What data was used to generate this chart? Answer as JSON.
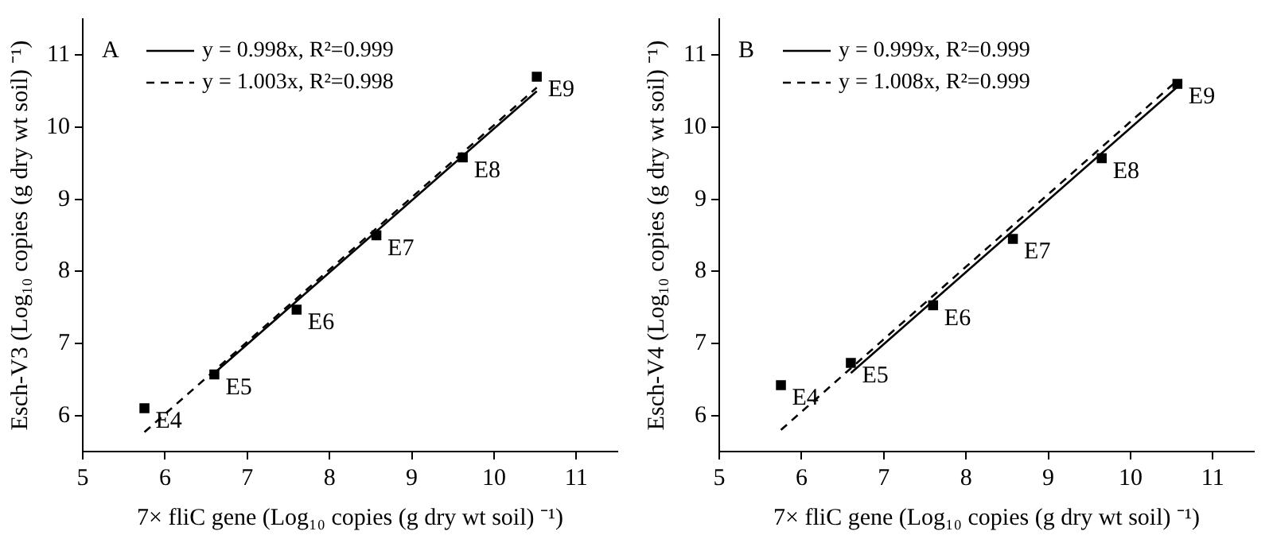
{
  "chart_data": [
    {
      "type": "scatter",
      "xlabel": "7× fliC gene (Log₁₀ copies (g dry wt soil) ⁻¹)",
      "ylabel": "Esch-V3 (Log₁₀ copies (g dry wt soil) ⁻¹)",
      "xlim": [
        5,
        11.5
      ],
      "xticks": [
        5,
        6,
        7,
        8,
        9,
        10,
        11
      ],
      "ylim": [
        5.5,
        11.5
      ],
      "yticks": [
        6,
        7,
        8,
        9,
        10,
        11
      ],
      "grid": false,
      "legend": "top left",
      "series": [
        {
          "type": "scatter",
          "marker": "square",
          "color": "#000000",
          "x": [
            5.75,
            6.6,
            7.6,
            8.57,
            9.62,
            10.52
          ],
          "values": [
            6.1,
            6.57,
            7.47,
            8.5,
            9.58,
            10.7
          ]
        },
        {
          "type": "line",
          "name": "y = 0.998x, R²=0.999",
          "marker": "none",
          "line_style": "solid",
          "color": "#000000",
          "x": [
            6.6,
            10.52
          ],
          "values": [
            6.59,
            10.5
          ]
        },
        {
          "type": "line",
          "name": "y = 1.003x, R²=0.998",
          "marker": "none",
          "line_style": "dashed",
          "color": "#000000",
          "x": [
            5.75,
            10.52
          ],
          "values": [
            5.77,
            10.55
          ]
        }
      ],
      "annotations": [
        "A",
        {
          "text": "E4",
          "x": 5.75,
          "y": 6.1
        },
        {
          "text": "E5",
          "x": 6.6,
          "y": 6.57
        },
        {
          "text": "E6",
          "x": 7.6,
          "y": 7.47
        },
        {
          "text": "E7",
          "x": 8.57,
          "y": 8.5
        },
        {
          "text": "E8",
          "x": 9.62,
          "y": 9.58
        },
        {
          "text": "E9",
          "x": 10.52,
          "y": 10.7
        }
      ]
    },
    {
      "type": "scatter",
      "xlabel": "7× fliC gene (Log₁₀ copies (g dry wt soil) ⁻¹)",
      "ylabel": "Esch-V4 (Log₁₀ copies (g dry wt soil) ⁻¹)",
      "xlim": [
        5,
        11.5
      ],
      "xticks": [
        5,
        6,
        7,
        8,
        9,
        10,
        11
      ],
      "ylim": [
        5.5,
        11.5
      ],
      "yticks": [
        6,
        7,
        8,
        9,
        10,
        11
      ],
      "grid": false,
      "legend": "top left",
      "series": [
        {
          "type": "scatter",
          "marker": "square",
          "color": "#000000",
          "x": [
            5.75,
            6.6,
            7.6,
            8.57,
            9.65,
            10.57
          ],
          "values": [
            6.42,
            6.73,
            7.53,
            8.45,
            9.57,
            10.6
          ]
        },
        {
          "type": "line",
          "name": "y = 0.999x, R²=0.999",
          "marker": "none",
          "line_style": "solid",
          "color": "#000000",
          "x": [
            6.6,
            10.57
          ],
          "values": [
            6.59,
            10.56
          ]
        },
        {
          "type": "line",
          "name": "y = 1.008x, R²=0.999",
          "marker": "none",
          "line_style": "dashed",
          "color": "#000000",
          "x": [
            5.75,
            10.57
          ],
          "values": [
            5.8,
            10.65
          ]
        }
      ],
      "annotations": [
        "B",
        {
          "text": "E4",
          "x": 5.75,
          "y": 6.42
        },
        {
          "text": "E5",
          "x": 6.6,
          "y": 6.73
        },
        {
          "text": "E6",
          "x": 7.6,
          "y": 7.53
        },
        {
          "text": "E7",
          "x": 8.57,
          "y": 8.45
        },
        {
          "text": "E8",
          "x": 9.65,
          "y": 9.57
        },
        {
          "text": "E9",
          "x": 10.57,
          "y": 10.6
        }
      ]
    }
  ]
}
